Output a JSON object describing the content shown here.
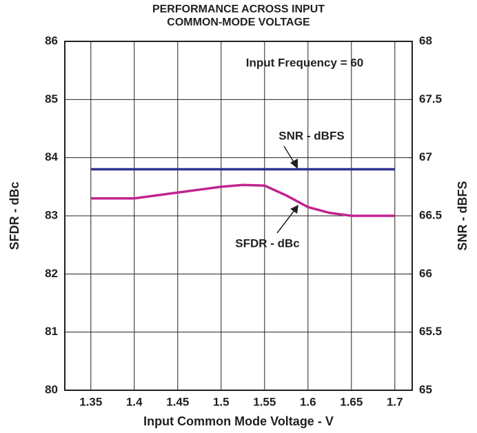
{
  "chart_data": {
    "type": "line",
    "title": [
      "PERFORMANCE ACROSS INPUT",
      "COMMON-MODE VOLTAGE"
    ],
    "x_label": "Input Common Mode Voltage - V",
    "y_label": "SFDR - dBc",
    "y2_label": "SNR - dBFS",
    "annotations": [
      "Input Frequency = 60",
      "SNR - dBFS",
      "SFDR - dBc"
    ],
    "x": [
      1.35,
      1.375,
      1.4,
      1.425,
      1.45,
      1.475,
      1.5,
      1.525,
      1.55,
      1.575,
      1.6,
      1.625,
      1.65,
      1.675,
      1.7
    ],
    "series": [
      {
        "name": "SNR - dBFS",
        "color": "#2e3192",
        "axis": "y2",
        "values": [
          66.9,
          66.9,
          66.9,
          66.9,
          66.9,
          66.9,
          66.9,
          66.9,
          66.9,
          66.9,
          66.9,
          66.9,
          66.9,
          66.9,
          66.9
        ]
      },
      {
        "name": "SFDR - dBc",
        "color": "#c0248f",
        "values": [
          83.3,
          83.3,
          83.3,
          83.35,
          83.4,
          83.45,
          83.5,
          83.53,
          83.52,
          83.35,
          83.15,
          83.05,
          83.0,
          83.0,
          83.0
        ]
      }
    ],
    "xlim": [
      1.32,
      1.72
    ],
    "xticks": [
      1.35,
      1.4,
      1.45,
      1.5,
      1.55,
      1.6,
      1.65,
      1.7
    ],
    "ylim": [
      80,
      86
    ],
    "yticks": [
      80,
      81,
      82,
      83,
      84,
      85,
      86
    ],
    "y2lim": [
      65,
      68
    ],
    "y2ticks": [
      65,
      65.5,
      66,
      66.5,
      67,
      67.5,
      68
    ],
    "grid": true
  }
}
